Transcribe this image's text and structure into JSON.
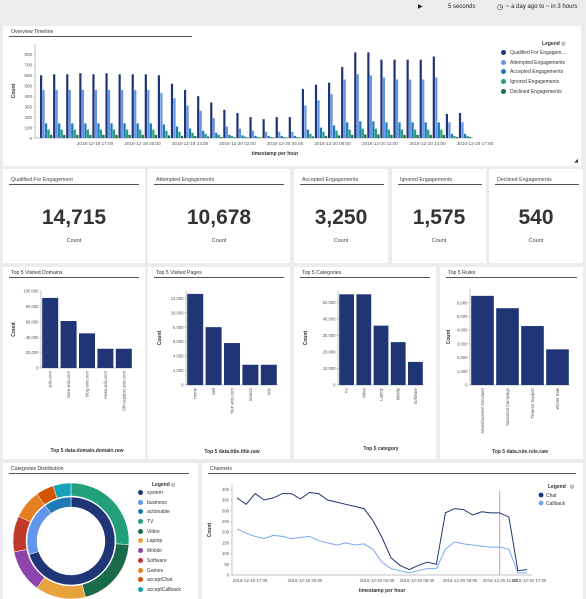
{
  "topbar": {
    "play_icon": "▶",
    "interval": "5 seconds",
    "clock_icon": "clock-icon",
    "time_range": "~ a day ago to ~ in 3 hours"
  },
  "colors": {
    "qualified": "#1f3575",
    "attempted": "#6495ed",
    "accepted": "#1f7bb5",
    "ignored": "#22a07a",
    "declined": "#196b4a",
    "bar": "#1f3575",
    "callback": "#78a9f0",
    "cursor": "#d9534f"
  },
  "timeline": {
    "title": "Overview Timeline",
    "legend_title": "Legend",
    "expand_icon": "resize-corner-icon"
  },
  "metrics": [
    {
      "label": "Qualified For Engagement",
      "value": "14,715",
      "caption": "Count"
    },
    {
      "label": "Attempted Engagements",
      "value": "10,678",
      "caption": "Count"
    },
    {
      "label": "Accepted Engagements",
      "value": "3,250",
      "caption": "Count"
    },
    {
      "label": "Ignored Engagements",
      "value": "1,575",
      "caption": "Count"
    },
    {
      "label": "Declined Engagements",
      "value": "540",
      "caption": "Count"
    }
  ],
  "panels": {
    "domains": "Top 5 Visited Domains",
    "pages": "Top 5 Visited Pages",
    "categories": "Top 5 Categories",
    "rules": "Top 5 Rules",
    "distribution": "Categories Distribution",
    "channels": "Channels"
  },
  "distribution_legend": {
    "title": "Legend",
    "items": [
      {
        "label": "system",
        "color": "#1f3575"
      },
      {
        "label": "business",
        "color": "#6495ed"
      },
      {
        "label": "actionable",
        "color": "#1f7bb5"
      },
      {
        "label": "TV",
        "color": "#22a07a"
      },
      {
        "label": "Video",
        "color": "#196b4a"
      },
      {
        "label": "Laptop",
        "color": "#e8a33d"
      },
      {
        "label": "Mobile",
        "color": "#8e44ad"
      },
      {
        "label": "Software",
        "color": "#c0392b"
      },
      {
        "label": "Games",
        "color": "#e67e22"
      },
      {
        "label": "acceptChat",
        "color": "#d35400"
      },
      {
        "label": "acceptCallback",
        "color": "#16a2b8"
      }
    ]
  },
  "chart_data": [
    {
      "type": "bar",
      "id": "overview_timeline",
      "title": "Overview Timeline",
      "xlabel": "timestamp per hour",
      "ylabel": "Count",
      "ylim": [
        0,
        900
      ],
      "yticks": [
        0,
        100,
        200,
        300,
        400,
        500,
        600,
        700,
        800
      ],
      "xticks": [
        "2016-12-19 17:00",
        "2016-12-19 20:00",
        "2016-12-19 23:00",
        "2016-12-20 02:00",
        "2016-12-20 05:00",
        "2016-12-20 08:00",
        "2016-12-20 11:00",
        "2016-12-20 14:00",
        "2016-12-20 17:00"
      ],
      "legend_position": "top-right",
      "series": [
        {
          "name": "Qualified For Engagem...",
          "values": [
            600,
            610,
            610,
            620,
            610,
            620,
            610,
            610,
            610,
            600,
            520,
            460,
            400,
            340,
            270,
            240,
            200,
            180,
            200,
            200,
            470,
            510,
            530,
            680,
            820,
            820,
            750,
            750,
            750,
            750,
            780,
            230,
            240
          ]
        },
        {
          "name": "Attempted Engagements",
          "values": [
            460,
            460,
            460,
            460,
            460,
            460,
            460,
            460,
            460,
            430,
            380,
            310,
            260,
            190,
            110,
            90,
            70,
            60,
            60,
            60,
            310,
            360,
            420,
            560,
            610,
            600,
            580,
            560,
            560,
            560,
            580,
            150,
            150
          ]
        },
        {
          "name": "Accepted Engagements",
          "values": [
            140,
            140,
            140,
            140,
            140,
            140,
            140,
            140,
            140,
            130,
            110,
            90,
            70,
            50,
            30,
            25,
            20,
            20,
            20,
            20,
            80,
            100,
            120,
            150,
            160,
            160,
            150,
            150,
            150,
            150,
            150,
            40,
            40
          ]
        },
        {
          "name": "Ignored Engagements",
          "values": [
            80,
            80,
            80,
            80,
            80,
            80,
            80,
            80,
            80,
            70,
            60,
            50,
            40,
            30,
            20,
            15,
            10,
            10,
            10,
            10,
            40,
            60,
            70,
            80,
            90,
            90,
            80,
            80,
            80,
            80,
            80,
            20,
            20
          ]
        },
        {
          "name": "Declined Engagements",
          "values": [
            30,
            30,
            30,
            30,
            30,
            30,
            30,
            30,
            30,
            25,
            20,
            18,
            15,
            10,
            8,
            6,
            5,
            5,
            5,
            5,
            15,
            20,
            25,
            30,
            35,
            35,
            30,
            30,
            30,
            30,
            30,
            10,
            10
          ]
        }
      ]
    },
    {
      "type": "bar",
      "id": "top_domains",
      "title": "Top 5 Visited Domains",
      "xlabel": "Top 5 data.domain.domain.raw",
      "ylabel": "Count",
      "ylim": [
        0,
        100000
      ],
      "yticks": [
        0,
        20000,
        40000,
        60000,
        80000,
        100000
      ],
      "ytick_labels": [
        "0",
        "20,000",
        "40,000",
        "60,000",
        "80,000",
        "100,000"
      ],
      "categories": [
        "ariis.com",
        "store.ariis.com",
        "blog.ariis.com",
        "news.ariis.com",
        "24h-support.ariis.com"
      ],
      "values": [
        91000,
        61000,
        45000,
        25000,
        25000
      ]
    },
    {
      "type": "bar",
      "id": "top_pages",
      "title": "Top 5 Visited Pages",
      "xlabel": "Top 5 data.title.title.raw",
      "ylabel": "Count",
      "ylim": [
        0,
        13000
      ],
      "yticks": [
        0,
        2000,
        4000,
        6000,
        8000,
        10000,
        12000
      ],
      "ytick_labels": [
        "0",
        "2,000",
        "4,000",
        "6,000",
        "8,000",
        "10,000",
        "12,000"
      ],
      "categories": [
        "Home",
        "Sell",
        "Your ariis.com",
        "Search",
        "Info"
      ],
      "values": [
        12600,
        8000,
        5800,
        2800,
        2800
      ]
    },
    {
      "type": "bar",
      "id": "top_categories",
      "title": "Top 5 Categories",
      "xlabel": "Top 5 category",
      "ylabel": "Count",
      "ylim": [
        0,
        57000
      ],
      "yticks": [
        0,
        10000,
        20000,
        30000,
        40000,
        50000
      ],
      "ytick_labels": [
        "0",
        "10,000",
        "20,000",
        "30,000",
        "40,000",
        "50,000"
      ],
      "categories": [
        "TV",
        "Video",
        "Laptop",
        "Mobile",
        "Software"
      ],
      "values": [
        55000,
        55000,
        36000,
        26000,
        14000
      ]
    },
    {
      "type": "bar",
      "id": "top_rules",
      "title": "Top 5 Rules",
      "xlabel": "Top 5 data.rule.rule.raw",
      "ylabel": "Count",
      "ylim": [
        0,
        7000
      ],
      "yticks": [
        0,
        1000,
        2000,
        3000,
        4000,
        5000,
        6000
      ],
      "ytick_labels": [
        "0",
        "1,000",
        "2,000",
        "3,000",
        "4,000",
        "5,000",
        "6,000"
      ],
      "categories": [
        "Advertisement Simulator",
        "Seasonal Campaign",
        "Timeout Support",
        "Winter Sale"
      ],
      "values": [
        6500,
        5600,
        4300,
        2600
      ]
    },
    {
      "type": "line",
      "id": "channels",
      "title": "Channels",
      "xlabel": "timestamp per hour",
      "ylabel": "Count",
      "ylim": [
        0,
        420
      ],
      "yticks": [
        0,
        50,
        100,
        150,
        200,
        250,
        300,
        350,
        400
      ],
      "xticks": [
        "2016-12-19 17:00",
        "2016-12-19 20:00",
        "2016-12-20 02:00",
        "2016-12-20 05:00",
        "2016-12-20 08:00",
        "2016-12-20 11:00",
        "2016-12-20 17:00"
      ],
      "legend_title": "Legend",
      "legend_position": "top-right",
      "series": [
        {
          "name": "Chat",
          "values": [
            360,
            330,
            380,
            350,
            360,
            380,
            380,
            355,
            385,
            380,
            350,
            340,
            330,
            320,
            310,
            255,
            175,
            80,
            45,
            25,
            45,
            60,
            50,
            290,
            310,
            305,
            280,
            295,
            290,
            290,
            270,
            20,
            25
          ]
        },
        {
          "name": "Callback",
          "values": [
            215,
            195,
            180,
            170,
            185,
            180,
            170,
            175,
            180,
            160,
            150,
            140,
            150,
            140,
            145,
            120,
            60,
            30,
            20,
            10,
            20,
            30,
            30,
            120,
            155,
            145,
            140,
            135,
            130,
            130,
            120,
            10,
            10
          ]
        }
      ]
    },
    {
      "type": "pie",
      "id": "categories_distribution",
      "title": "Categories Distribution",
      "rings": [
        {
          "labels": [
            "system",
            "business",
            "actionable"
          ],
          "values": [
            70,
            20,
            10
          ]
        },
        {
          "labels": [
            "TV",
            "Video",
            "Laptop",
            "Mobile",
            "Software",
            "Games",
            "acceptChat",
            "acceptCallback"
          ],
          "values": [
            26,
            20,
            14,
            12,
            10,
            8,
            5,
            5
          ]
        }
      ]
    }
  ]
}
